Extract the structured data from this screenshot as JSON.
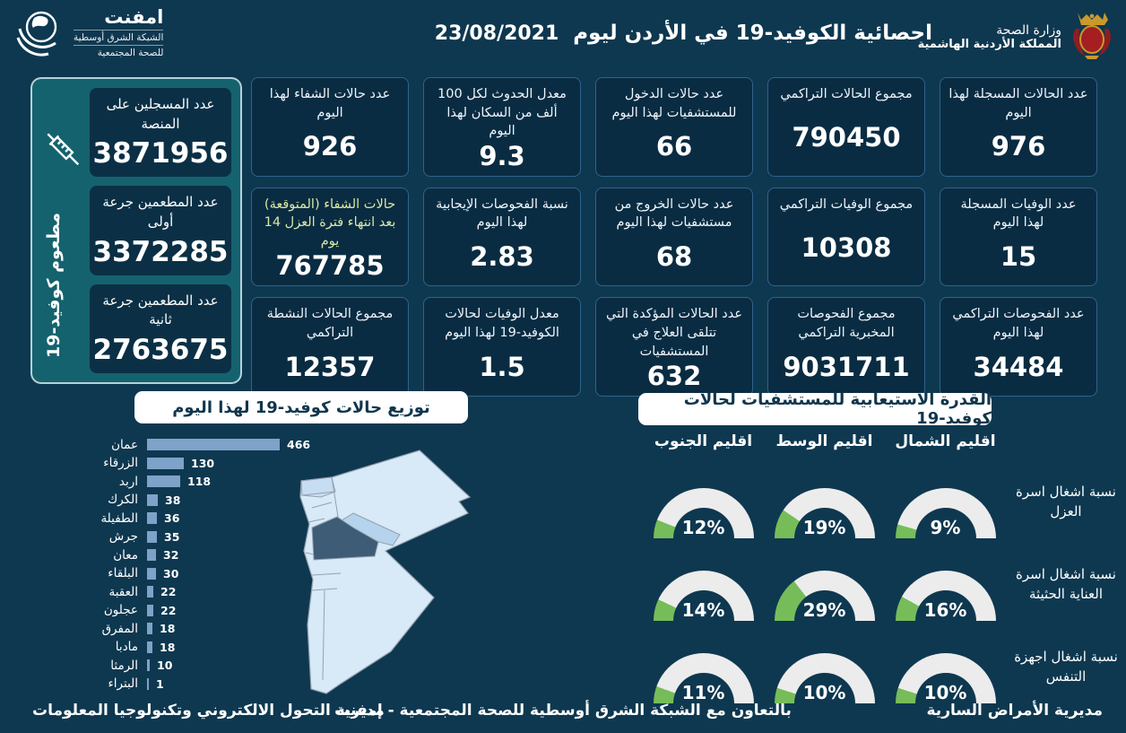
{
  "header": {
    "title": "احصائية الكوفيد-19 في الأردن ليوم",
    "date": "23/08/2021",
    "emphnet_logo": {
      "name": "امفنت",
      "line1": "الشبكة الشرق أوسطية",
      "line2": "للصحة المجتمعية"
    },
    "moh_logo": {
      "line1": "وزارة الصحة",
      "line2": "المملكة الأردنية الهاشمية"
    }
  },
  "vaccination_panel": {
    "vertical_label": "مطعوم كوفيد-19",
    "cards": [
      {
        "label": "عدد المسجلين على المنصة",
        "value": "3871956"
      },
      {
        "label": "عدد المطعمين جرعة أولى",
        "value": "3372285"
      },
      {
        "label": "عدد المطعمين جرعة ثانية",
        "value": "2763675"
      }
    ]
  },
  "stats_cards": [
    {
      "label": "عدد الحالات المسجلة لهذا اليوم",
      "value": "976"
    },
    {
      "label": "مجموع الحالات التراكمي",
      "value": "790450"
    },
    {
      "label": "عدد حالات الدخول للمستشفيات لهذا اليوم",
      "value": "66"
    },
    {
      "label": "معدل الحدوث لكل 100 ألف من السكان لهذا اليوم",
      "value": "9.3"
    },
    {
      "label": "عدد حالات الشفاء لهذا اليوم",
      "value": "926"
    },
    {
      "label": "عدد الوفيات المسجلة لهذا اليوم",
      "value": "15"
    },
    {
      "label": "مجموع الوفيات التراكمي",
      "value": "10308"
    },
    {
      "label": "عدد حالات الخروج من مستشفيات لهذا اليوم",
      "value": "68"
    },
    {
      "label": "نسبة الفحوصات الإيجابية لهذا اليوم",
      "value": "2.83"
    },
    {
      "label": "حالات الشفاء (المتوقعة) بعد انتهاء فترة العزل 14 يوم",
      "value": "767785",
      "accent": true
    },
    {
      "label": "عدد الفحوصات التراكمي لهذا اليوم",
      "value": "34484"
    },
    {
      "label": "مجموع الفحوصات المخبرية التراكمي",
      "value": "9031711"
    },
    {
      "label": "عدد الحالات المؤكدة التي تتلقى العلاج في المستشفيات",
      "value": "632"
    },
    {
      "label": "معدل الوفيات لحالات الكوفيد-19 لهذا اليوم",
      "value": "1.5"
    },
    {
      "label": "مجموع الحالات النشطة التراكمي",
      "value": "12357"
    }
  ],
  "chart_data": [
    {
      "id": "cases_by_governorate",
      "type": "bar",
      "title": "توزيع حالات كوفيد-19 لهذا اليوم",
      "orientation": "horizontal",
      "categories": [
        "عمان",
        "الزرقاء",
        "اربد",
        "الكرك",
        "الطفيلة",
        "جرش",
        "معان",
        "البلقاء",
        "العقبة",
        "عجلون",
        "المفرق",
        "مادبا",
        "الرمثا",
        "البتراء"
      ],
      "values": [
        466,
        130,
        118,
        38,
        36,
        35,
        32,
        30,
        22,
        22,
        18,
        18,
        10,
        1
      ],
      "xlim": [
        0,
        466
      ],
      "grid": false,
      "legend": "none"
    },
    {
      "id": "hospital_capacity",
      "type": "table",
      "title": "القدرة الاستيعابية للمستشفيات لحالات كوفيد-19",
      "columns": [
        "اقليم الشمال",
        "اقليم الوسط",
        "اقليم الجنوب"
      ],
      "rows": [
        {
          "label": "نسبة اشغال اسرة العزل",
          "values_pct": [
            9,
            19,
            12
          ]
        },
        {
          "label": "نسبة اشغال اسرة العناية الحثيثة",
          "values_pct": [
            16,
            29,
            14
          ]
        },
        {
          "label": "نسبة اشغال اجهزة التنفس",
          "values_pct": [
            10,
            10,
            11
          ]
        }
      ],
      "gauge_style": "half-donut"
    }
  ],
  "footer": {
    "right": "مديرية الأمراض السارية",
    "center": "بالتعاون مع الشبكة الشرق أوسطية للصحة المجتمعية - إمفنت",
    "left": "مديرية التحول الالكتروني وتكنولوجيا المعلومات"
  },
  "colors": {
    "page_bg": "#0e3850",
    "card_bg": "#0a2c42",
    "card_border": "#2e638a",
    "panel_bg": "#15626f",
    "vcard_bg": "#0b3046",
    "bar": "#7fa2c8",
    "gauge_green": "#76bd59",
    "gauge_track": "#ececec",
    "map_light": "#d8e9f8",
    "map_light2": "#c7ddf2",
    "map_medium": "#b5d3ec",
    "map_dark": "#3e5c76",
    "map_stroke": "#94a2ae",
    "accent_label": "#d9e8a9"
  }
}
